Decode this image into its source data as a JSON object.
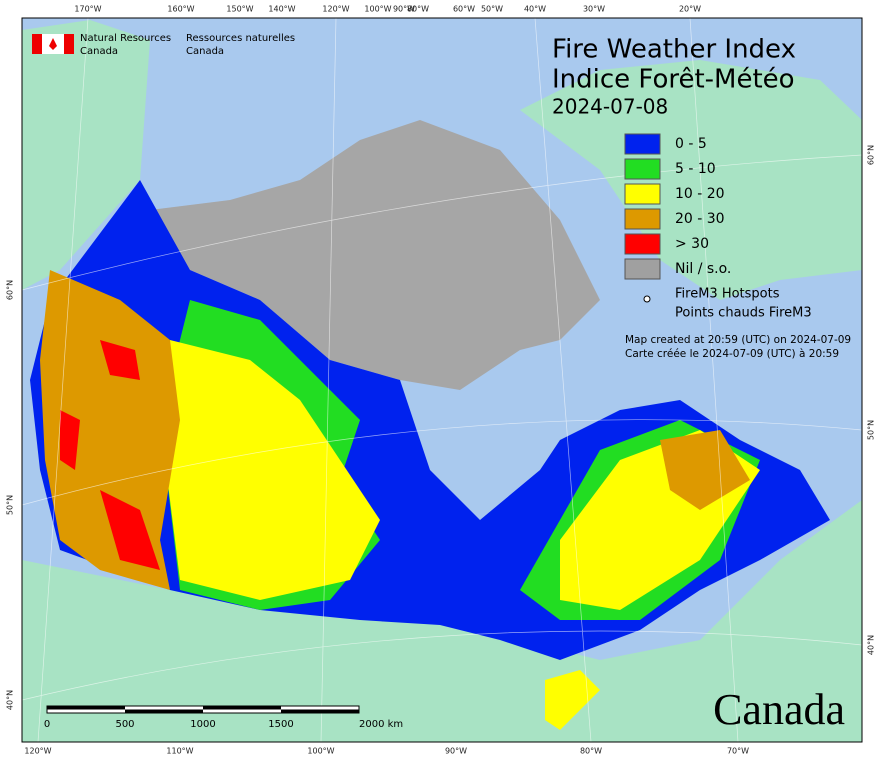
{
  "header": {
    "en_line1": "Natural Resources",
    "en_line2": "Canada",
    "fr_line1": "Ressources naturelles",
    "fr_line2": "Canada"
  },
  "title": {
    "line1": "Fire Weather Index",
    "line2": "Indice Forêt-Météo",
    "date": "2024-07-08"
  },
  "legend": [
    {
      "label": "0 - 5",
      "color": "#0022ee"
    },
    {
      "label": "5 - 10",
      "color": "#22dd22"
    },
    {
      "label": "10 - 20",
      "color": "#ffff00"
    },
    {
      "label": "20 - 30",
      "color": "#dd9900"
    },
    {
      "label": "> 30",
      "color": "#ff0000"
    },
    {
      "label": "Nil / s.o.",
      "color": "#a0a0a0"
    }
  ],
  "hotspots": {
    "line1": "FireM3 Hotspots",
    "line2": "Points chauds FireM3"
  },
  "notes": {
    "line1": "Map created at 20:59 (UTC) on 2024-07-09",
    "line2": "Carte créée le 2024-07-09 (UTC) à 20:59"
  },
  "graticule": {
    "top": [
      "170°W",
      "160°W",
      "150°W",
      "140°W",
      "120°W",
      "100°W",
      "90°W",
      "80°W",
      "60°W",
      "50°W",
      "40°W",
      "30°W",
      "20°W"
    ],
    "bottom": [
      "120°W",
      "110°W",
      "100°W",
      "90°W",
      "80°W",
      "70°W"
    ],
    "left": [
      "60°N",
      "50°N",
      "40°N"
    ],
    "right": [
      "60°N",
      "50°N",
      "40°N"
    ]
  },
  "scale_bar": [
    "0",
    "500",
    "1000",
    "1500",
    "2000 km"
  ],
  "wordmark": "Canada"
}
